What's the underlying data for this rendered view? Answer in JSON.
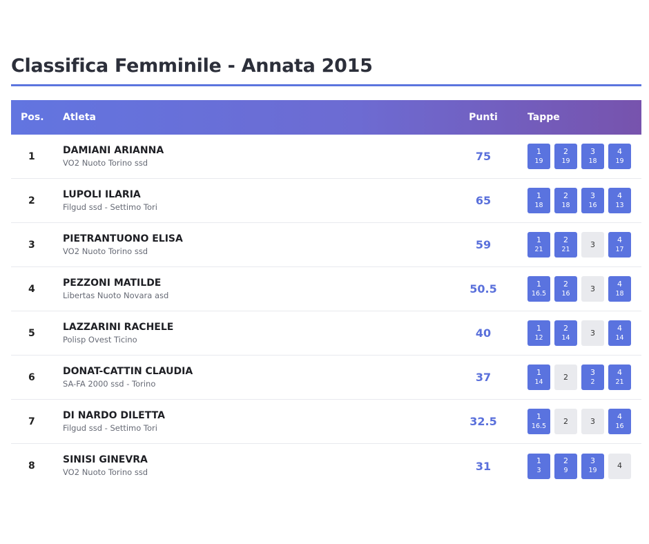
{
  "page": {
    "title": "Classifica Femminile - Annata 2015"
  },
  "colors": {
    "accent": "#5b74de",
    "header_start": "#6275e0",
    "header_end": "#7753ad",
    "badge_on": "#5a73df",
    "badge_off": "#e9eaee"
  },
  "table": {
    "headers": {
      "pos": "Pos.",
      "athlete": "Atleta",
      "points": "Punti",
      "stages": "Tappe"
    },
    "rows": [
      {
        "pos": "1",
        "name": "DAMIANI ARIANNA",
        "club": "VO2 Nuoto Torino ssd",
        "points": "75",
        "stages": [
          {
            "n": "1",
            "p": "19"
          },
          {
            "n": "2",
            "p": "19"
          },
          {
            "n": "3",
            "p": "18"
          },
          {
            "n": "4",
            "p": "19"
          }
        ]
      },
      {
        "pos": "2",
        "name": "LUPOLI ILARIA",
        "club": "Filgud ssd - Settimo Tori",
        "points": "65",
        "stages": [
          {
            "n": "1",
            "p": "18"
          },
          {
            "n": "2",
            "p": "18"
          },
          {
            "n": "3",
            "p": "16"
          },
          {
            "n": "4",
            "p": "13"
          }
        ]
      },
      {
        "pos": "3",
        "name": "PIETRANTUONO ELISA",
        "club": "VO2 Nuoto Torino ssd",
        "points": "59",
        "stages": [
          {
            "n": "1",
            "p": "21"
          },
          {
            "n": "2",
            "p": "21"
          },
          {
            "n": "3",
            "p": ""
          },
          {
            "n": "4",
            "p": "17"
          }
        ]
      },
      {
        "pos": "4",
        "name": "PEZZONI MATILDE",
        "club": "Libertas Nuoto Novara asd",
        "points": "50.5",
        "stages": [
          {
            "n": "1",
            "p": "16.5"
          },
          {
            "n": "2",
            "p": "16"
          },
          {
            "n": "3",
            "p": ""
          },
          {
            "n": "4",
            "p": "18"
          }
        ]
      },
      {
        "pos": "5",
        "name": "LAZZARINI RACHELE",
        "club": "Polisp Ovest Ticino",
        "points": "40",
        "stages": [
          {
            "n": "1",
            "p": "12"
          },
          {
            "n": "2",
            "p": "14"
          },
          {
            "n": "3",
            "p": ""
          },
          {
            "n": "4",
            "p": "14"
          }
        ]
      },
      {
        "pos": "6",
        "name": "DONAT-CATTIN CLAUDIA",
        "club": "SA-FA 2000 ssd - Torino",
        "points": "37",
        "stages": [
          {
            "n": "1",
            "p": "14"
          },
          {
            "n": "2",
            "p": ""
          },
          {
            "n": "3",
            "p": "2"
          },
          {
            "n": "4",
            "p": "21"
          }
        ]
      },
      {
        "pos": "7",
        "name": "DI NARDO DILETTA",
        "club": "Filgud ssd - Settimo Tori",
        "points": "32.5",
        "stages": [
          {
            "n": "1",
            "p": "16.5"
          },
          {
            "n": "2",
            "p": ""
          },
          {
            "n": "3",
            "p": ""
          },
          {
            "n": "4",
            "p": "16"
          }
        ]
      },
      {
        "pos": "8",
        "name": "SINISI GINEVRA",
        "club": "VO2 Nuoto Torino ssd",
        "points": "31",
        "stages": [
          {
            "n": "1",
            "p": "3"
          },
          {
            "n": "2",
            "p": "9"
          },
          {
            "n": "3",
            "p": "19"
          },
          {
            "n": "4",
            "p": ""
          }
        ]
      }
    ]
  }
}
